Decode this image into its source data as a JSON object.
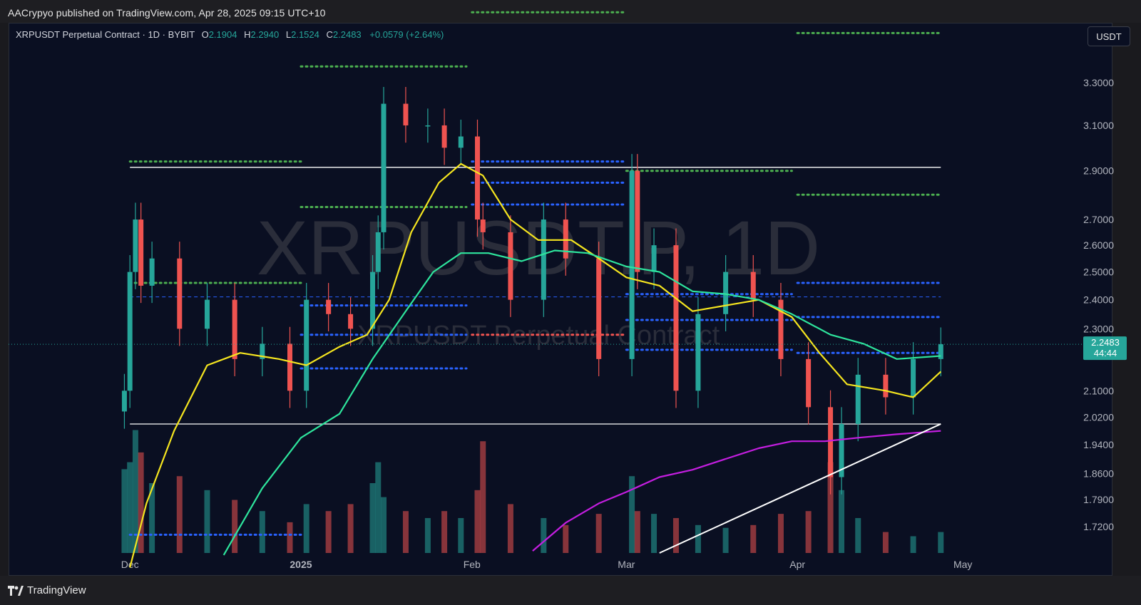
{
  "header": {
    "publish_line": "AACrypyo published on TradingView.com, Apr 28, 2025 09:15 UTC+10"
  },
  "legend": {
    "title": "XRPUSDT Perpetual Contract · 1D · BYBIT",
    "o_label": "O",
    "o_value": "2.1904",
    "h_label": "H",
    "h_value": "2.2940",
    "l_label": "L",
    "l_value": "2.1524",
    "c_label": "C",
    "c_value": "2.2483",
    "change": "+0.0579 (+2.64%)"
  },
  "currency_button": "USDT",
  "footer": {
    "brand": "TradingView"
  },
  "colors": {
    "up": "#26a69a",
    "down": "#ef5350",
    "ma_fast": "#f5e51f",
    "ma_mid": "#2ee59d",
    "ma_slow": "#c41ee0",
    "trendline": "#ffffff",
    "level_green": "#4caf50",
    "level_blue": "#2962ff",
    "level_red": "#ef5350",
    "background": "#0a0f22"
  },
  "chart_data": {
    "type": "candlestick",
    "symbol": "XRPUSDT",
    "watermark": {
      "main": "XRPUSDT.P, 1D",
      "sub": "XRPUSDT Perpetual Contract"
    },
    "y_scale": "log",
    "ylim": [
      1.655,
      3.6
    ],
    "y_ticks": [
      "3.3000",
      "3.1000",
      "2.9000",
      "2.7000",
      "2.6000",
      "2.5000",
      "2.4000",
      "2.3000",
      "2.1000",
      "2.0200",
      "1.9400",
      "1.8600",
      "1.7900",
      "1.7200"
    ],
    "x_range": [
      "2024-11-09",
      "2025-04-28"
    ],
    "x_ticks": [
      {
        "label": "Dec",
        "date": "2024-12-01"
      },
      {
        "label": "2025",
        "date": "2025-01-01"
      },
      {
        "label": "Feb",
        "date": "2025-02-01"
      },
      {
        "label": "Mar",
        "date": "2025-03-01"
      },
      {
        "label": "Apr",
        "date": "2025-04-01"
      },
      {
        "label": "May",
        "date": "2025-05-01"
      }
    ],
    "last_price": {
      "value": "2.2483",
      "countdown": "44:44"
    },
    "close_series": {
      "dates": [
        "2024-11-30",
        "2024-12-01",
        "2024-12-02",
        "2024-12-03",
        "2024-12-05",
        "2024-12-10",
        "2024-12-15",
        "2024-12-20",
        "2024-12-25",
        "2024-12-30",
        "2025-01-02",
        "2025-01-06",
        "2025-01-10",
        "2025-01-14",
        "2025-01-15",
        "2025-01-16",
        "2025-01-20",
        "2025-01-24",
        "2025-01-27",
        "2025-01-30",
        "2025-02-02",
        "2025-02-03",
        "2025-02-08",
        "2025-02-14",
        "2025-02-18",
        "2025-02-24",
        "2025-03-02",
        "2025-03-03",
        "2025-03-06",
        "2025-03-10",
        "2025-03-14",
        "2025-03-19",
        "2025-03-24",
        "2025-03-29",
        "2025-04-03",
        "2025-04-07",
        "2025-04-09",
        "2025-04-12",
        "2025-04-17",
        "2025-04-22",
        "2025-04-27"
      ],
      "values": [
        2.1,
        2.5,
        2.7,
        2.45,
        2.55,
        2.3,
        2.4,
        2.2,
        2.25,
        2.1,
        2.4,
        2.35,
        2.3,
        2.5,
        2.65,
        3.2,
        3.1,
        3.1,
        3.0,
        3.05,
        2.7,
        2.65,
        2.4,
        2.7,
        2.55,
        2.2,
        2.9,
        2.5,
        2.6,
        2.1,
        2.35,
        2.5,
        2.4,
        2.2,
        2.05,
        1.85,
        2.0,
        2.15,
        2.08,
        2.2,
        2.2483
      ]
    },
    "volume_relative": [
      0.6,
      0.65,
      0.88,
      0.72,
      0.5,
      0.55,
      0.45,
      0.38,
      0.3,
      0.22,
      0.35,
      0.3,
      0.35,
      0.5,
      0.65,
      0.4,
      0.3,
      0.25,
      0.3,
      0.25,
      0.45,
      0.8,
      0.35,
      0.25,
      0.2,
      0.28,
      0.55,
      0.3,
      0.28,
      0.25,
      0.2,
      0.18,
      0.2,
      0.28,
      0.3,
      0.65,
      0.45,
      0.25,
      0.15,
      0.12,
      0.15
    ],
    "moving_averages": [
      {
        "color": "ma_fast",
        "dates": [
          "2024-12-01",
          "2024-12-04",
          "2024-12-09",
          "2024-12-15",
          "2024-12-21",
          "2024-12-28",
          "2025-01-02",
          "2025-01-08",
          "2025-01-13",
          "2025-01-17",
          "2025-01-21",
          "2025-01-26",
          "2025-01-30",
          "2025-02-03",
          "2025-02-08",
          "2025-02-13",
          "2025-02-19",
          "2025-02-24",
          "2025-03-01",
          "2025-03-07",
          "2025-03-13",
          "2025-03-19",
          "2025-03-25",
          "2025-03-31",
          "2025-04-05",
          "2025-04-10",
          "2025-04-17",
          "2025-04-22",
          "2025-04-27"
        ],
        "values": [
          1.62,
          1.78,
          1.98,
          2.18,
          2.22,
          2.2,
          2.18,
          2.24,
          2.28,
          2.4,
          2.65,
          2.85,
          2.93,
          2.88,
          2.7,
          2.62,
          2.62,
          2.55,
          2.48,
          2.45,
          2.36,
          2.38,
          2.4,
          2.34,
          2.22,
          2.12,
          2.1,
          2.08,
          2.16
        ]
      },
      {
        "color": "ma_mid",
        "dates": [
          "2024-12-18",
          "2024-12-25",
          "2025-01-01",
          "2025-01-08",
          "2025-01-14",
          "2025-01-20",
          "2025-01-25",
          "2025-01-30",
          "2025-02-04",
          "2025-02-10",
          "2025-02-16",
          "2025-02-22",
          "2025-03-01",
          "2025-03-07",
          "2025-03-13",
          "2025-03-19",
          "2025-03-25",
          "2025-03-31",
          "2025-04-07",
          "2025-04-13",
          "2025-04-19",
          "2025-04-27"
        ],
        "values": [
          1.65,
          1.82,
          1.96,
          2.03,
          2.2,
          2.36,
          2.5,
          2.57,
          2.57,
          2.54,
          2.58,
          2.57,
          2.52,
          2.5,
          2.43,
          2.42,
          2.4,
          2.35,
          2.28,
          2.25,
          2.2,
          2.21
        ]
      },
      {
        "color": "ma_slow",
        "dates": [
          "2025-02-12",
          "2025-02-18",
          "2025-02-24",
          "2025-03-01",
          "2025-03-07",
          "2025-03-13",
          "2025-03-19",
          "2025-03-25",
          "2025-03-31",
          "2025-04-06",
          "2025-04-12",
          "2025-04-19",
          "2025-04-27"
        ],
        "values": [
          1.66,
          1.73,
          1.78,
          1.81,
          1.85,
          1.87,
          1.9,
          1.93,
          1.95,
          1.95,
          1.96,
          1.97,
          1.98
        ]
      }
    ],
    "trendlines": [
      {
        "from": [
          "2025-03-07",
          1.655
        ],
        "to": [
          "2025-04-27",
          2.0
        ]
      }
    ],
    "horizontal_lines": [
      {
        "price": 2.915,
        "from": "2024-12-01",
        "to": "2025-04-27",
        "style": "solid",
        "color": "trendline"
      },
      {
        "price": 2.0,
        "from": "2024-12-01",
        "to": "2025-04-27",
        "style": "solid",
        "color": "trendline"
      },
      {
        "price": 2.41,
        "from": "2024-12-01",
        "to": "2025-04-27",
        "style": "dashed",
        "color": "level_blue"
      }
    ],
    "dotted_levels": [
      {
        "color": "level_green",
        "price": 3.38,
        "from": "2025-01-01",
        "to": "2025-01-31"
      },
      {
        "color": "level_green",
        "price": 2.94,
        "from": "2024-12-01",
        "to": "2025-01-01"
      },
      {
        "color": "level_green",
        "price": 2.75,
        "from": "2025-01-01",
        "to": "2025-01-31"
      },
      {
        "color": "level_green",
        "price": 2.46,
        "from": "2024-12-01",
        "to": "2025-01-01"
      },
      {
        "color": "level_green",
        "price": 2.9,
        "from": "2025-03-01",
        "to": "2025-03-31"
      },
      {
        "color": "level_green",
        "price": 3.55,
        "from": "2025-04-01",
        "to": "2025-04-27"
      },
      {
        "color": "level_green",
        "price": 2.8,
        "from": "2025-04-01",
        "to": "2025-04-27"
      },
      {
        "color": "level_green",
        "price": 3.66,
        "from": "2025-02-01",
        "to": "2025-03-01"
      },
      {
        "color": "level_blue",
        "price": 2.94,
        "from": "2025-02-01",
        "to": "2025-03-01"
      },
      {
        "color": "level_blue",
        "price": 2.85,
        "from": "2025-02-01",
        "to": "2025-03-01"
      },
      {
        "color": "level_blue",
        "price": 2.76,
        "from": "2025-02-01",
        "to": "2025-03-01"
      },
      {
        "color": "level_blue",
        "price": 2.38,
        "from": "2025-01-01",
        "to": "2025-01-31"
      },
      {
        "color": "level_blue",
        "price": 2.28,
        "from": "2025-01-01",
        "to": "2025-01-31"
      },
      {
        "color": "level_blue",
        "price": 2.17,
        "from": "2025-01-01",
        "to": "2025-01-31"
      },
      {
        "color": "level_red",
        "price": 2.28,
        "from": "2025-02-01",
        "to": "2025-03-01"
      },
      {
        "color": "level_blue",
        "price": 2.42,
        "from": "2025-03-01",
        "to": "2025-03-31"
      },
      {
        "color": "level_blue",
        "price": 2.33,
        "from": "2025-03-01",
        "to": "2025-03-31"
      },
      {
        "color": "level_blue",
        "price": 2.23,
        "from": "2025-03-01",
        "to": "2025-03-31"
      },
      {
        "color": "level_blue",
        "price": 2.46,
        "from": "2025-04-01",
        "to": "2025-04-27"
      },
      {
        "color": "level_blue",
        "price": 2.34,
        "from": "2025-04-01",
        "to": "2025-04-27"
      },
      {
        "color": "level_blue",
        "price": 2.22,
        "from": "2025-04-01",
        "to": "2025-04-27"
      },
      {
        "color": "level_blue",
        "price": 1.7,
        "from": "2024-12-01",
        "to": "2025-01-01"
      }
    ]
  }
}
